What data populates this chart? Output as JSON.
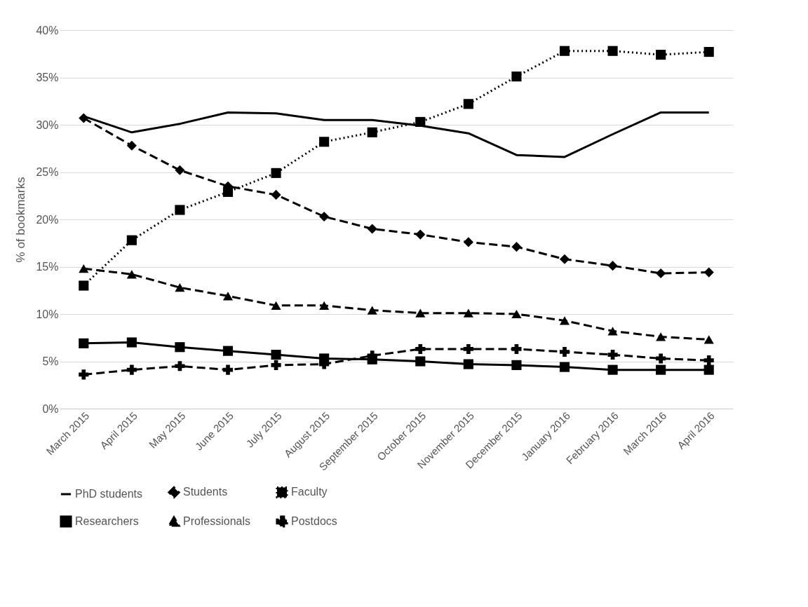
{
  "chart_data": {
    "type": "line",
    "ylabel": "% of bookmarks",
    "categories": [
      "March 2015",
      "April 2015",
      "May 2015",
      "June 2015",
      "July 2015",
      "August 2015",
      "September 2015",
      "October 2015",
      "November 2015",
      "December 2015",
      "January 2016",
      "February 2016",
      "March 2016",
      "April 2016"
    ],
    "series": [
      {
        "name": "PhD students",
        "color": "#000000",
        "line_style": "solid",
        "marker": "none",
        "values": [
          30.9,
          29.2,
          30.1,
          31.3,
          31.2,
          30.5,
          30.5,
          29.9,
          29.1,
          26.8,
          26.6,
          29.0,
          31.3,
          31.3
        ]
      },
      {
        "name": "Students",
        "color": "#000000",
        "line_style": "dashed",
        "marker": "diamond",
        "values": [
          30.7,
          27.8,
          25.2,
          23.5,
          22.6,
          20.3,
          19.0,
          18.4,
          17.6,
          17.1,
          15.8,
          15.1,
          14.3,
          14.4
        ]
      },
      {
        "name": "Faculty",
        "color": "#000000",
        "line_style": "dotted",
        "marker": "square",
        "values": [
          13.0,
          17.8,
          21.0,
          22.9,
          24.9,
          28.2,
          29.2,
          30.3,
          32.2,
          35.1,
          37.8,
          37.8,
          37.4,
          37.7
        ]
      },
      {
        "name": "Researchers",
        "color": "#000000",
        "line_style": "solid",
        "marker": "square",
        "values": [
          6.9,
          7.0,
          6.5,
          6.1,
          5.7,
          5.3,
          5.2,
          5.0,
          4.7,
          4.6,
          4.4,
          4.1,
          4.1,
          4.1
        ]
      },
      {
        "name": "Professionals",
        "color": "#000000",
        "line_style": "dashed",
        "marker": "triangle",
        "values": [
          14.8,
          14.2,
          12.8,
          11.9,
          10.9,
          10.9,
          10.4,
          10.1,
          10.1,
          10.0,
          9.3,
          8.2,
          7.6,
          7.3
        ]
      },
      {
        "name": "Postdocs",
        "color": "#000000",
        "line_style": "dashed",
        "marker": "cross",
        "values": [
          3.6,
          4.1,
          4.5,
          4.1,
          4.6,
          4.7,
          5.6,
          6.3,
          6.3,
          6.3,
          6.0,
          5.7,
          5.3,
          5.1
        ]
      }
    ],
    "ylim": [
      0,
      40
    ],
    "yticks": [
      {
        "value": 0,
        "label": "0%"
      },
      {
        "value": 5,
        "label": "5%"
      },
      {
        "value": 10,
        "label": "10%"
      },
      {
        "value": 15,
        "label": "15%"
      },
      {
        "value": 20,
        "label": "20%"
      },
      {
        "value": 25,
        "label": "25%"
      },
      {
        "value": 30,
        "label": "30%"
      },
      {
        "value": 35,
        "label": "35%"
      },
      {
        "value": 40,
        "label": "40%"
      }
    ],
    "grid": "y",
    "legend": "bottom"
  }
}
